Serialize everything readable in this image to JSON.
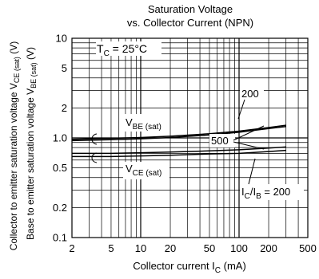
{
  "chart_data": {
    "type": "line",
    "title_line1": "Saturation Voltage",
    "title_line2": "vs. Collector Current (NPN)",
    "xlabel": {
      "text": "Collector current  I",
      "sub": "C",
      "suffix": " (mA)"
    },
    "ylabel_outer": {
      "pre": "Collector to emitter saturation voltage  V",
      "sub": "CE (sat)",
      "post": "  (V)"
    },
    "ylabel_inner": {
      "pre": "Base to emitter saturation voltage  V",
      "sub": "BE (sat)",
      "post": "  (V)"
    },
    "x_scale": "log",
    "y_scale": "log",
    "xlim": [
      2,
      500
    ],
    "ylim": [
      0.1,
      10
    ],
    "x_ticks": [
      {
        "value": 2,
        "label": "2"
      },
      {
        "value": 5,
        "label": "5"
      },
      {
        "value": 10,
        "label": "10"
      },
      {
        "value": 20,
        "label": "20"
      },
      {
        "value": 50,
        "label": "50"
      },
      {
        "value": 100,
        "label": "100"
      },
      {
        "value": 200,
        "label": "200"
      },
      {
        "value": 500,
        "label": "500"
      }
    ],
    "y_ticks": [
      {
        "value": 0.1,
        "label": "0.1"
      },
      {
        "value": 0.2,
        "label": "0.2"
      },
      {
        "value": 0.5,
        "label": "0.5"
      },
      {
        "value": 1.0,
        "label": "1.0"
      },
      {
        "value": 2,
        "label": "2"
      },
      {
        "value": 5,
        "label": "5"
      },
      {
        "value": 10,
        "label": "10"
      }
    ],
    "grid": true,
    "temperature": {
      "pre": "T",
      "sub": "C",
      "post": " = 25°C"
    },
    "series": [
      {
        "name": "VBE(sat), IC/IB=200",
        "x": [
          2,
          5,
          10,
          20,
          50,
          100,
          200,
          300
        ],
        "y": [
          0.97,
          0.99,
          1.01,
          1.04,
          1.1,
          1.17,
          1.27,
          1.34
        ]
      },
      {
        "name": "VBE(sat), IC/IB=500",
        "x": [
          2,
          5,
          10,
          20,
          50,
          100,
          200,
          300
        ],
        "y": [
          0.94,
          0.96,
          0.98,
          1.01,
          1.07,
          1.14,
          1.24,
          1.3
        ]
      },
      {
        "name": "VCE(sat), IC/IB=500",
        "x": [
          2,
          5,
          10,
          20,
          50,
          100,
          200,
          300
        ],
        "y": [
          0.7,
          0.7,
          0.71,
          0.72,
          0.74,
          0.76,
          0.79,
          0.81
        ]
      },
      {
        "name": "VCE(sat), IC/IB=200",
        "x": [
          2,
          5,
          10,
          20,
          50,
          100,
          200,
          300
        ],
        "y": [
          0.65,
          0.65,
          0.66,
          0.67,
          0.69,
          0.7,
          0.73,
          0.75
        ]
      }
    ],
    "annotations": {
      "vbe_label": {
        "pre": "V",
        "sub": "BE (sat)"
      },
      "vce_label": {
        "pre": "V",
        "sub": "CE (sat)"
      },
      "ratio_200_top": "200",
      "ratio_500": "500",
      "ratio_bottom": {
        "pre": "I",
        "sub1": "C",
        "mid": "/I",
        "sub2": "B",
        "post": " = 200"
      }
    }
  }
}
